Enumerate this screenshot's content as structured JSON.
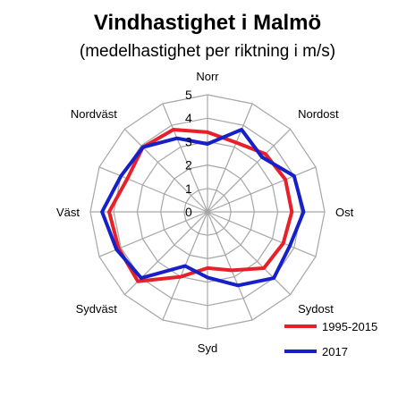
{
  "chart_data": {
    "type": "radar",
    "title": "Vindhastighet i Malmö",
    "subtitle": "(medelhastighet per riktning i m/s)",
    "rmin": 0,
    "rmax": 5,
    "ticks": [
      "0",
      "1",
      "2",
      "3",
      "4",
      "5"
    ],
    "grid": true,
    "directions": 16,
    "direction_labels": [
      {
        "index": 0,
        "label": "Norr"
      },
      {
        "index": 2,
        "label": "Nordost"
      },
      {
        "index": 4,
        "label": "Ost"
      },
      {
        "index": 6,
        "label": "Sydost"
      },
      {
        "index": 8,
        "label": "Syd"
      },
      {
        "index": 10,
        "label": "Sydväst"
      },
      {
        "index": 12,
        "label": "Väst"
      },
      {
        "index": 14,
        "label": "Nordväst"
      }
    ],
    "legend_position": "bottom-right",
    "series": [
      {
        "name": "1995-2015",
        "color": "#e8202a",
        "values": [
          3.4,
          3.2,
          3.5,
          3.6,
          3.6,
          3.5,
          3.4,
          2.7,
          2.4,
          3.0,
          4.2,
          4.1,
          4.2,
          3.7,
          3.9,
          3.8
        ]
      },
      {
        "name": "2017",
        "color": "#1520c8",
        "values": [
          2.9,
          3.8,
          3.3,
          4.0,
          4.1,
          3.8,
          4.0,
          3.4,
          2.8,
          2.5,
          4.0,
          4.2,
          4.5,
          4.0,
          3.9,
          3.4
        ]
      }
    ]
  }
}
